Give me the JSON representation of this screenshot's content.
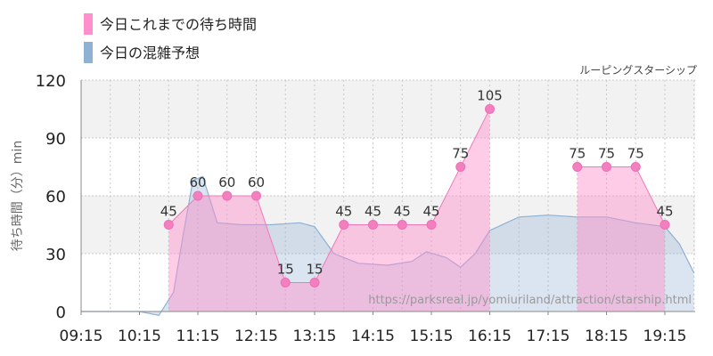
{
  "legend": [
    {
      "label": "今日これまでの待ち時間",
      "color": "#ff8fcd"
    },
    {
      "label": "今日の混雑予想",
      "color": "#8fb1d4"
    }
  ],
  "attraction_name": "ルーピングスターシップ",
  "source_url": "https://parksreal.jp/yomiuriland/attraction/starship.html",
  "chart_data": {
    "type": "line",
    "ylabel": "待ち時間（分）min",
    "ylim": [
      0,
      120
    ],
    "yticks": [
      0,
      30,
      60,
      90,
      120
    ],
    "xticks": [
      "09:15",
      "10:15",
      "11:15",
      "12:15",
      "13:15",
      "14:15",
      "15:15",
      "16:15",
      "17:15",
      "18:15",
      "19:15"
    ],
    "grid": true,
    "series": [
      {
        "name": "今日これまでの待ち時間",
        "color": "#ff8fcd",
        "segments": [
          [
            {
              "x": "10:45",
              "y": 45
            },
            {
              "x": "11:15",
              "y": 60
            },
            {
              "x": "11:45",
              "y": 60
            },
            {
              "x": "12:15",
              "y": 60
            },
            {
              "x": "12:45",
              "y": 15
            },
            {
              "x": "13:15",
              "y": 15
            },
            {
              "x": "13:45",
              "y": 45
            },
            {
              "x": "14:15",
              "y": 45
            },
            {
              "x": "14:45",
              "y": 45
            },
            {
              "x": "15:15",
              "y": 45
            },
            {
              "x": "15:45",
              "y": 75
            },
            {
              "x": "16:15",
              "y": 105
            }
          ],
          [
            {
              "x": "17:45",
              "y": 75
            },
            {
              "x": "18:15",
              "y": 75
            },
            {
              "x": "18:45",
              "y": 75
            },
            {
              "x": "19:15",
              "y": 45
            }
          ]
        ]
      },
      {
        "name": "今日の混雑予想",
        "color": "#8fb1d4",
        "points": [
          {
            "x": "09:15",
            "y": 0
          },
          {
            "x": "09:45",
            "y": 0
          },
          {
            "x": "10:15",
            "y": 0
          },
          {
            "x": "10:35",
            "y": -2
          },
          {
            "x": "10:50",
            "y": 10
          },
          {
            "x": "11:00",
            "y": 40
          },
          {
            "x": "11:10",
            "y": 68
          },
          {
            "x": "11:20",
            "y": 70
          },
          {
            "x": "11:35",
            "y": 46
          },
          {
            "x": "12:00",
            "y": 45
          },
          {
            "x": "12:30",
            "y": 45
          },
          {
            "x": "13:00",
            "y": 46
          },
          {
            "x": "13:15",
            "y": 44
          },
          {
            "x": "13:35",
            "y": 30
          },
          {
            "x": "14:00",
            "y": 25
          },
          {
            "x": "14:30",
            "y": 24
          },
          {
            "x": "14:55",
            "y": 26
          },
          {
            "x": "15:10",
            "y": 31
          },
          {
            "x": "15:30",
            "y": 28
          },
          {
            "x": "15:45",
            "y": 23
          },
          {
            "x": "16:00",
            "y": 30
          },
          {
            "x": "16:15",
            "y": 42
          },
          {
            "x": "16:45",
            "y": 49
          },
          {
            "x": "17:15",
            "y": 50
          },
          {
            "x": "17:45",
            "y": 49
          },
          {
            "x": "18:15",
            "y": 49
          },
          {
            "x": "18:45",
            "y": 46
          },
          {
            "x": "19:15",
            "y": 44
          },
          {
            "x": "19:30",
            "y": 35
          },
          {
            "x": "19:45",
            "y": 20
          }
        ]
      }
    ]
  }
}
